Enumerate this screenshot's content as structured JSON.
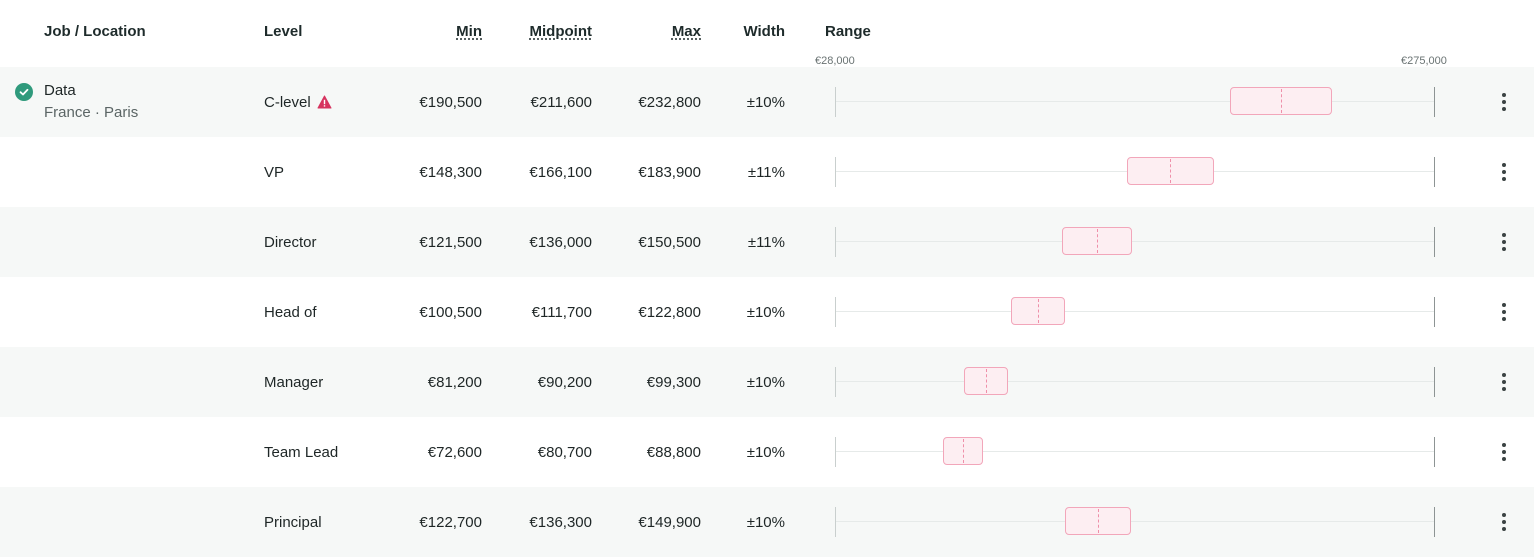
{
  "colors": {
    "band_fill": "#fdeef2",
    "band_border": "#f2a6ba",
    "midpoint_line": "#ef8fa9",
    "check_green": "#2f9a7c",
    "warning_red": "#d6345f"
  },
  "columns": {
    "job_location": "Job / Location",
    "level": "Level",
    "min": "Min",
    "midpoint": "Midpoint",
    "max": "Max",
    "width": "Width",
    "range": "Range"
  },
  "range_axis": {
    "min_label": "€28,000",
    "max_label": "€275,000",
    "min_value": 28000,
    "max_value": 275000
  },
  "job": {
    "title": "Data",
    "location": "France · Paris",
    "status_icon": "check-circle-icon"
  },
  "rows": [
    {
      "level": "C-level",
      "warning": true,
      "min": "€190,500",
      "midpoint": "€211,600",
      "max": "€232,800",
      "width": "±10%",
      "min_value": 190500,
      "mid_value": 211600,
      "max_value": 232800
    },
    {
      "level": "VP",
      "warning": false,
      "min": "€148,300",
      "midpoint": "€166,100",
      "max": "€183,900",
      "width": "±11%",
      "min_value": 148300,
      "mid_value": 166100,
      "max_value": 183900
    },
    {
      "level": "Director",
      "warning": false,
      "min": "€121,500",
      "midpoint": "€136,000",
      "max": "€150,500",
      "width": "±11%",
      "min_value": 121500,
      "mid_value": 136000,
      "max_value": 150500
    },
    {
      "level": "Head of",
      "warning": false,
      "min": "€100,500",
      "midpoint": "€111,700",
      "max": "€122,800",
      "width": "±10%",
      "min_value": 100500,
      "mid_value": 111700,
      "max_value": 122800
    },
    {
      "level": "Manager",
      "warning": false,
      "min": "€81,200",
      "midpoint": "€90,200",
      "max": "€99,300",
      "width": "±10%",
      "min_value": 81200,
      "mid_value": 90200,
      "max_value": 99300
    },
    {
      "level": "Team Lead",
      "warning": false,
      "min": "€72,600",
      "midpoint": "€80,700",
      "max": "€88,800",
      "width": "±10%",
      "min_value": 72600,
      "mid_value": 80700,
      "max_value": 88800
    },
    {
      "level": "Principal",
      "warning": false,
      "min": "€122,700",
      "midpoint": "€136,300",
      "max": "€149,900",
      "width": "±10%",
      "min_value": 122700,
      "mid_value": 136300,
      "max_value": 149900
    }
  ]
}
